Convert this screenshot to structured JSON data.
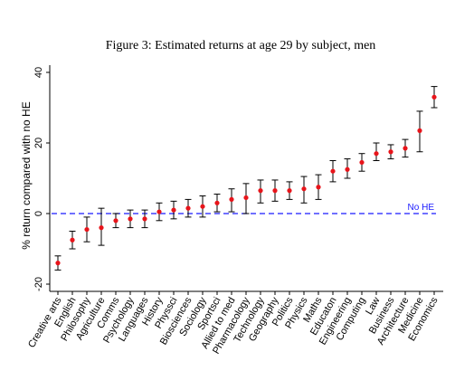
{
  "chart_data": {
    "type": "scatter",
    "title": "Figure 3: Estimated returns at age 29 by subject, men",
    "ylabel": "% return compared with no HE",
    "xlabel": "",
    "ylim": [
      -22,
      42
    ],
    "yticks": [
      -20,
      0,
      20,
      40
    ],
    "grid": false,
    "reference_line": {
      "y": 0,
      "label": "No HE",
      "color": "#1a1aff",
      "style": "dashed"
    },
    "point_color": "#e8141a",
    "errorbar_color": "#000000",
    "categories": [
      "Creative arts",
      "English",
      "Philosophy",
      "Agriculture",
      "Comms",
      "Psychology",
      "Languages",
      "History",
      "Physsci",
      "Biosciences",
      "Sociology",
      "Sportsci",
      "Allied to med",
      "Pharmacology",
      "Technology",
      "Geography",
      "Politics",
      "Physics",
      "Maths",
      "Educaton",
      "Engineering",
      "Computing",
      "Law",
      "Business",
      "Architecture",
      "Medicine",
      "Economics"
    ],
    "series": [
      {
        "values": [
          -14,
          -7.5,
          -4.5,
          -4,
          -2,
          -1.5,
          -1.5,
          0.5,
          1,
          1.5,
          2,
          3,
          4,
          4.5,
          6.5,
          6.5,
          6.5,
          7,
          7.5,
          12,
          12.5,
          14.5,
          17,
          17.5,
          18.5,
          23.5,
          33
        ],
        "lower": [
          -16,
          -10,
          -8,
          -9,
          -4,
          -4,
          -4,
          -2,
          -1.5,
          -1,
          -1,
          0.5,
          0.5,
          0,
          3,
          3.5,
          4,
          3,
          4,
          9,
          10,
          12,
          15,
          15.5,
          16,
          17.5,
          30
        ],
        "upper": [
          -12,
          -5,
          -1,
          1.5,
          0,
          1,
          1,
          3,
          3.5,
          4,
          5,
          5.5,
          7,
          8.5,
          9.5,
          9.5,
          9,
          10.5,
          11,
          15,
          15.5,
          17,
          20,
          19.5,
          21,
          29,
          36
        ]
      }
    ]
  }
}
